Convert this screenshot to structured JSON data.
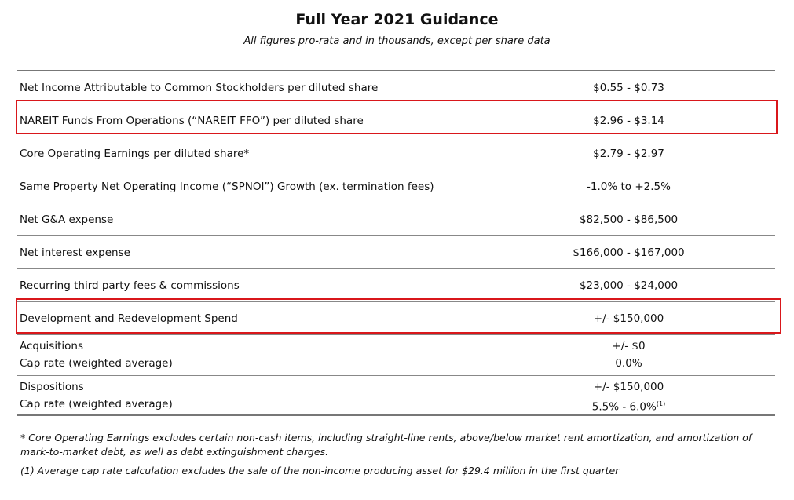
{
  "header": {
    "title": "Full Year 2021 Guidance",
    "subtitle": "All figures pro-rata and in thousands, except per share data"
  },
  "table": {
    "rows": [
      {
        "lines": [
          [
            "Net Income Attributable to Common Stockholders per diluted share",
            "$0.55 - $0.73"
          ]
        ]
      },
      {
        "lines": [
          [
            "NAREIT Funds From Operations (“NAREIT FFO”) per diluted share",
            "$2.96 - $3.14"
          ]
        ]
      },
      {
        "lines": [
          [
            "Core Operating Earnings per diluted share*",
            "$2.79 - $2.97"
          ]
        ]
      },
      {
        "lines": [
          [
            "Same Property Net Operating Income (“SPNOI”) Growth (ex. termination fees)",
            "-1.0% to +2.5%"
          ]
        ]
      },
      {
        "lines": [
          [
            "Net G&A expense",
            "$82,500 - $86,500"
          ]
        ]
      },
      {
        "lines": [
          [
            "Net interest expense",
            "$166,000 - $167,000"
          ]
        ]
      },
      {
        "lines": [
          [
            "Recurring third party fees & commissions",
            "$23,000 - $24,000"
          ]
        ]
      },
      {
        "lines": [
          [
            "Development and Redevelopment Spend",
            "+/- $150,000"
          ]
        ]
      },
      {
        "lines": [
          [
            "Acquisitions",
            "+/- $0"
          ],
          [
            "Cap rate (weighted average)",
            "0.0%"
          ]
        ]
      },
      {
        "lines": [
          [
            "Dispositions",
            "+/- $150,000"
          ],
          [
            "Cap rate (weighted average)",
            "5.5% - 6.0%"
          ]
        ],
        "note": "(1)"
      }
    ]
  },
  "footnotes": [
    "* Core Operating Earnings excludes certain non-cash items, including straight-line rents, above/below market rent amortization, and amortization of mark-to-market debt, as well as debt extinguishment charges.",
    "(1) Average cap rate calculation excludes the sale of the non-income producing asset for $29.4 million in the first quarter"
  ]
}
